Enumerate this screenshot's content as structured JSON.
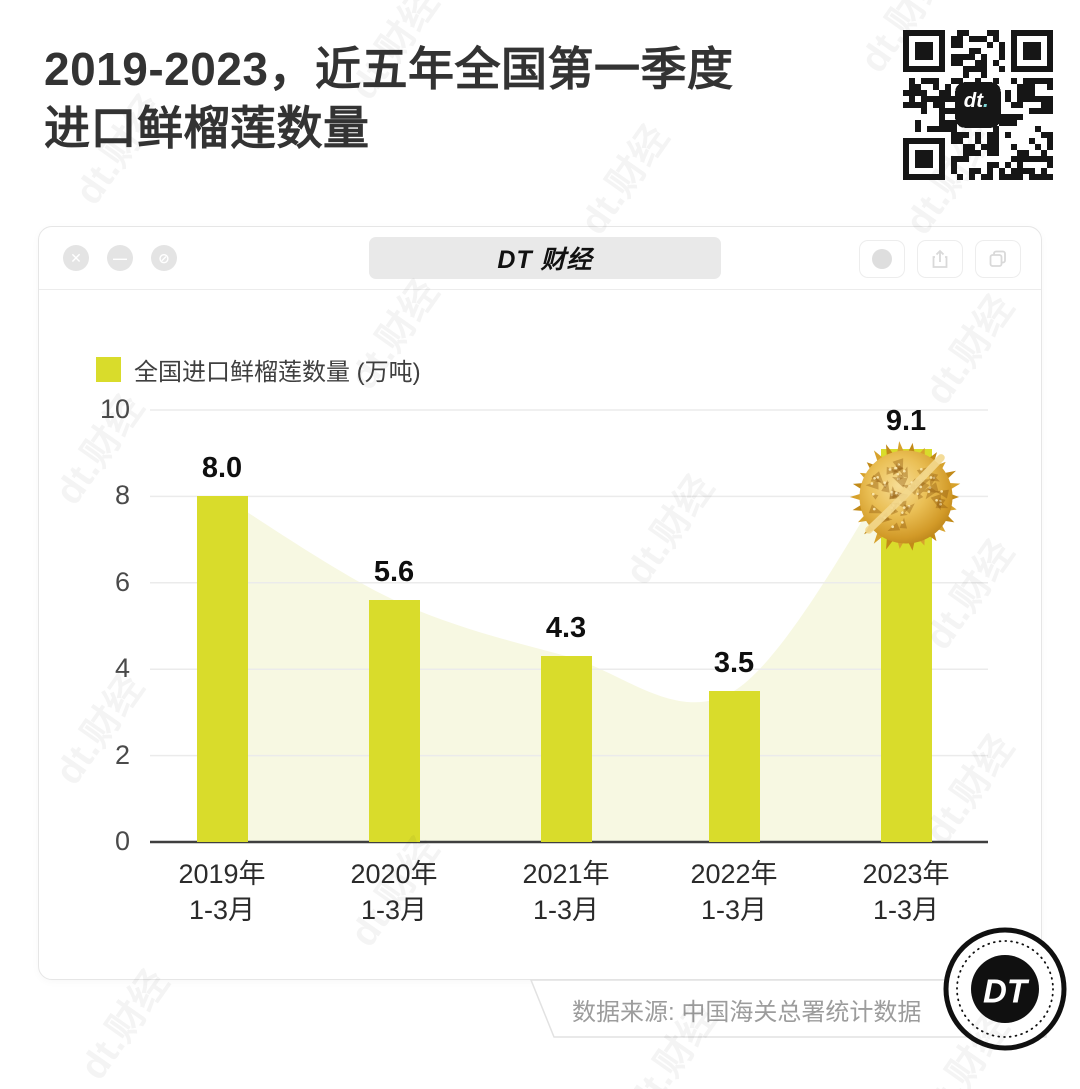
{
  "page_title": {
    "line1": "2019-2023，近五年全国第一季度",
    "line2": "进口鲜榴莲数量"
  },
  "window": {
    "title": "DT 财经",
    "controls": [
      "close",
      "minimize",
      "block"
    ],
    "right_buttons": [
      "record-circle",
      "share",
      "tabs"
    ]
  },
  "legend": {
    "label": "全国进口鲜榴莲数量 (万吨)"
  },
  "source": {
    "label": "数据来源: 中国海关总署统计数据"
  },
  "logo": {
    "text": "DT"
  },
  "qr": {
    "center_label": "dt."
  },
  "watermark": {
    "text": "dt.财经"
  },
  "colors": {
    "bar": "#d9dc2b",
    "area": "#f7f8e2",
    "grid": "#ebebeb",
    "axis": "#3f3f3f",
    "title_text": "#333333",
    "durian_gold": "#e0ac3c"
  },
  "chart_data": {
    "type": "bar",
    "title": "2019-2023，近五年全国第一季度进口鲜榴莲数量",
    "legend": "全国进口鲜榴莲数量 (万吨)",
    "categories": [
      "2019年 1-3月",
      "2020年 1-3月",
      "2021年 1-3月",
      "2022年 1-3月",
      "2023年 1-3月"
    ],
    "category_lines": [
      {
        "line1": "2019年",
        "line2": "1-3月"
      },
      {
        "line1": "2020年",
        "line2": "1-3月"
      },
      {
        "line1": "2021年",
        "line2": "1-3月"
      },
      {
        "line1": "2022年",
        "line2": "1-3月"
      },
      {
        "line1": "2023年",
        "line2": "1-3月"
      }
    ],
    "values": [
      8.0,
      5.6,
      4.3,
      3.5,
      9.1
    ],
    "value_labels": [
      "8.0",
      "5.6",
      "4.3",
      "3.5",
      "9.1"
    ],
    "unit": "万吨",
    "ylabel": "",
    "xlabel": "",
    "ylim": [
      0,
      10
    ],
    "yticks": [
      10,
      8,
      6,
      4,
      2,
      0
    ],
    "grid": true,
    "legend_position": "top-left",
    "area_overlay_behind_bars": true
  }
}
